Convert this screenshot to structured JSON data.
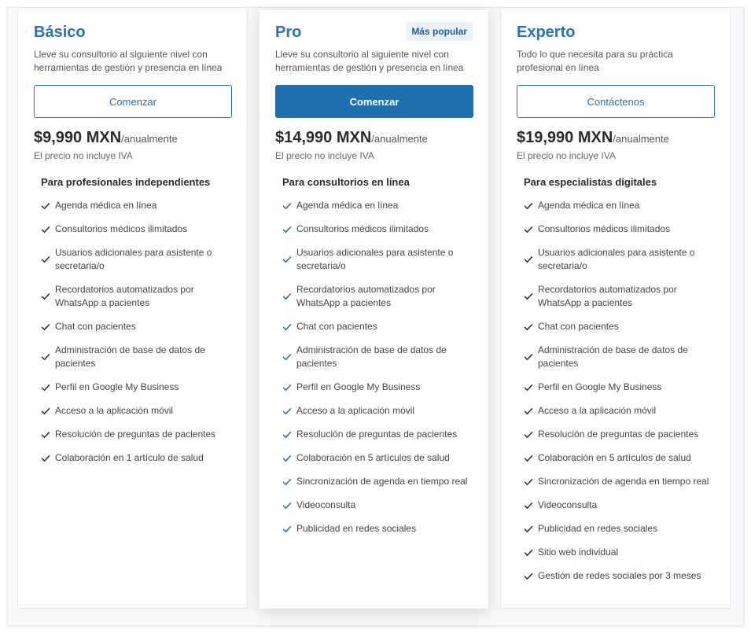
{
  "colors": {
    "accent": "#2a72b1",
    "primary_button": "#1f70b0",
    "badge_bg": "#eaf3fb"
  },
  "plans": [
    {
      "name": "Básico",
      "badge": "",
      "description": "Lleve su consultorio al siguiente nivel con herramientas de gestión y presencia en línea",
      "cta": "Comenzar",
      "price": "$9,990 MXN",
      "period": "/anualmente",
      "tax_note": "El precio no incluye IVA",
      "features_title": "Para profesionales independientes",
      "check_color": "#333333",
      "features": [
        "Agenda médica en línea",
        "Consultorios médicos ilimitados",
        "Usuarios adicionales para asistente o secretaria/o",
        "Recordatorios automatizados por WhatsApp a pacientes",
        "Chat con pacientes",
        "Administración de base de datos de pacientes",
        "Perfil en Google My Business",
        "Acceso a la aplicación móvil",
        "Resolución de preguntas de pacientes",
        "Colaboración en 1 artículo de salud"
      ]
    },
    {
      "name": "Pro",
      "badge": "Más popular",
      "description": "Lleve su consultorio al siguiente nivel con herramientas de gestión y presencia en línea",
      "cta": "Comenzar",
      "price": "$14,990 MXN",
      "period": "/anualmente",
      "tax_note": "El precio no incluye IVA",
      "features_title": "Para consultorios en línea",
      "check_color": "#2a72b1",
      "features": [
        "Agenda médica en línea",
        "Consultorios médicos ilimitados",
        "Usuarios adicionales para asistente o secretaria/o",
        "Recordatorios automatizados por WhatsApp a pacientes",
        "Chat con pacientes",
        "Administración de base de datos de pacientes",
        "Perfil en Google My Business",
        "Acceso a la aplicación móvil",
        "Resolución de preguntas de pacientes",
        "Colaboración en 5 artículos de salud",
        "Sincronización de agenda en tiempo real",
        "Videoconsulta",
        "Publicidad en redes sociales"
      ]
    },
    {
      "name": "Experto",
      "badge": "",
      "description": "Todo lo que necesita para su práctica profesional en línea",
      "cta": "Contáctenos",
      "price": "$19,990 MXN",
      "period": "/anualmente",
      "tax_note": "El precio no incluye IVA",
      "features_title": "Para especialistas digitales",
      "check_color": "#333333",
      "features": [
        "Agenda médica en línea",
        "Consultorios médicos ilimitados",
        "Usuarios adicionales para asistente o secretaria/o",
        "Recordatorios automatizados por WhatsApp a pacientes",
        "Chat con pacientes",
        "Administración de base de datos de pacientes",
        "Perfil en Google My Business",
        "Acceso a la aplicación móvil",
        "Resolución de preguntas de pacientes",
        "Colaboración en 5 artículos de salud",
        "Sincronización de agenda en tiempo real",
        "Videoconsulta",
        "Publicidad en redes sociales",
        "Sitio web individual",
        "Gestión de redes sociales por 3 meses"
      ]
    }
  ]
}
